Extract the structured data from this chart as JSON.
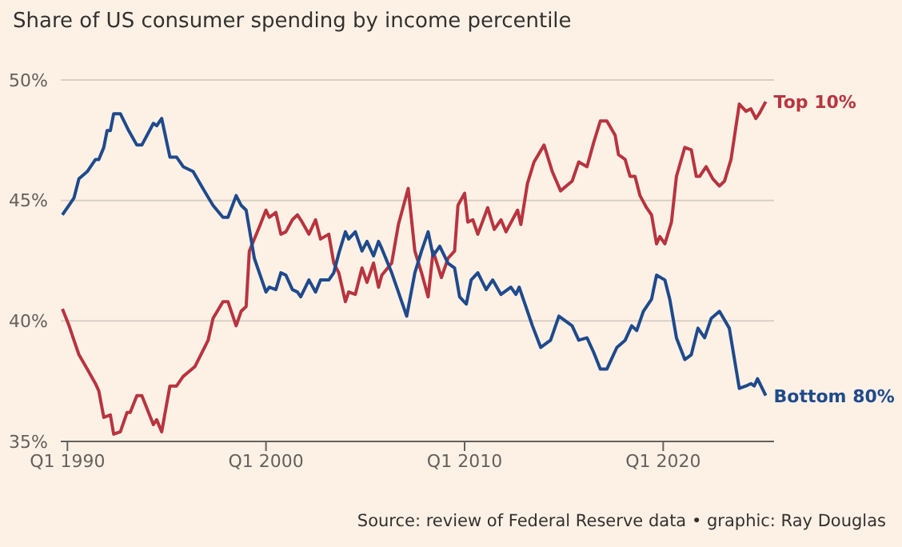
{
  "chart_data": {
    "type": "line",
    "title": "Share of US consumer spending by income percentile",
    "annotations": [
      "Source: review of Federal Reserve data • graphic: Ray Douglas"
    ],
    "xlim": [
      "1989-09",
      "2025-08"
    ],
    "xticks": [
      {
        "value": "1990-01",
        "label": "Q1 1990"
      },
      {
        "value": "2000-01",
        "label": "Q1 2000"
      },
      {
        "value": "2010-01",
        "label": "Q1 2010"
      },
      {
        "value": "2020-01",
        "label": "Q1 2020"
      }
    ],
    "ylim": [
      35,
      50
    ],
    "yticks": [
      {
        "value": 35,
        "label": "35%"
      },
      {
        "value": 40,
        "label": "40%"
      },
      {
        "value": 45,
        "label": "45%"
      },
      {
        "value": 50,
        "label": "50%"
      }
    ],
    "grid": "y",
    "marker": "none",
    "line_style": "solid",
    "series": [
      {
        "name": "Top 10%",
        "color": "#b8343f",
        "x": [
          "1989-10",
          "1990-02",
          "1990-05",
          "1990-08",
          "1991-01",
          "1991-06",
          "1991-08",
          "1991-11",
          "1992-03",
          "1992-05",
          "1992-09",
          "1993-01",
          "1993-03",
          "1993-07",
          "1993-10",
          "1994-05",
          "1994-07",
          "1994-10",
          "1995-03",
          "1995-07",
          "1995-11",
          "1996-06",
          "1997-02",
          "1997-05",
          "1997-11",
          "1998-02",
          "1998-07",
          "1998-10",
          "1999-01",
          "1999-03",
          "1999-09",
          "2000-01",
          "2000-03",
          "2000-07",
          "2000-10",
          "2001-01",
          "2001-05",
          "2001-08",
          "2001-10",
          "2002-03",
          "2002-07",
          "2002-10",
          "2003-03",
          "2003-06",
          "2003-09",
          "2004-01",
          "2004-03",
          "2004-07",
          "2004-11",
          "2005-02",
          "2005-06",
          "2005-09",
          "2005-11",
          "2006-05",
          "2006-09",
          "2007-03",
          "2007-07",
          "2007-11",
          "2008-03",
          "2008-06",
          "2008-11",
          "2009-03",
          "2009-07",
          "2009-09",
          "2010-01",
          "2010-03",
          "2010-06",
          "2010-09",
          "2011-03",
          "2011-07",
          "2011-11",
          "2012-02",
          "2012-09",
          "2012-11",
          "2013-03",
          "2013-07",
          "2014-01",
          "2014-06",
          "2014-11",
          "2015-06",
          "2015-10",
          "2016-03",
          "2016-07",
          "2016-11",
          "2017-03",
          "2017-08",
          "2017-10",
          "2018-02",
          "2018-05",
          "2018-08",
          "2018-11",
          "2019-03",
          "2019-06",
          "2019-09",
          "2019-11",
          "2020-02",
          "2020-06",
          "2020-09",
          "2021-02",
          "2021-06",
          "2021-09",
          "2021-11",
          "2022-03",
          "2022-07",
          "2022-11",
          "2023-02",
          "2023-06",
          "2023-11",
          "2024-03",
          "2024-06",
          "2024-09",
          "2024-11",
          "2025-03"
        ],
        "values": [
          40.5,
          39.8,
          39.2,
          38.6,
          38.0,
          37.4,
          37.1,
          36.0,
          36.1,
          35.3,
          35.4,
          36.2,
          36.2,
          36.9,
          36.9,
          35.7,
          35.9,
          35.4,
          37.3,
          37.3,
          37.7,
          38.1,
          39.2,
          40.1,
          40.8,
          40.8,
          39.8,
          40.4,
          40.6,
          42.9,
          43.9,
          44.6,
          44.3,
          44.5,
          43.6,
          43.7,
          44.2,
          44.4,
          44.2,
          43.6,
          44.2,
          43.4,
          43.6,
          42.4,
          42.0,
          40.8,
          41.2,
          41.1,
          42.2,
          41.6,
          42.4,
          41.4,
          41.9,
          42.4,
          44.0,
          45.5,
          42.9,
          42.0,
          41.0,
          42.9,
          41.8,
          42.6,
          42.9,
          44.8,
          45.3,
          44.1,
          44.2,
          43.6,
          44.7,
          43.8,
          44.2,
          43.7,
          44.6,
          44.0,
          45.7,
          46.6,
          47.3,
          46.2,
          45.4,
          45.8,
          46.6,
          46.4,
          47.4,
          48.3,
          48.3,
          47.7,
          46.9,
          46.7,
          46.0,
          46.0,
          45.2,
          44.7,
          44.4,
          43.2,
          43.5,
          43.2,
          44.1,
          46.0,
          47.2,
          47.1,
          46.0,
          46.0,
          46.4,
          45.9,
          45.6,
          45.8,
          46.7,
          49.0,
          48.7,
          48.8,
          48.4,
          48.6,
          49.1
        ]
      },
      {
        "name": "Bottom 80%",
        "color": "#1f4a8c",
        "x": [
          "1989-10",
          "1990-05",
          "1990-08",
          "1991-01",
          "1991-06",
          "1991-08",
          "1991-11",
          "1992-01",
          "1992-03",
          "1992-05",
          "1992-09",
          "1993-02",
          "1993-07",
          "1993-10",
          "1994-05",
          "1994-07",
          "1994-10",
          "1995-03",
          "1995-07",
          "1995-11",
          "1996-05",
          "1996-10",
          "1997-05",
          "1997-11",
          "1998-02",
          "1998-07",
          "1998-10",
          "1999-01",
          "1999-06",
          "1999-09",
          "2000-01",
          "2000-03",
          "2000-07",
          "2000-10",
          "2001-01",
          "2001-05",
          "2001-08",
          "2001-10",
          "2002-03",
          "2002-07",
          "2002-10",
          "2003-03",
          "2003-06",
          "2003-09",
          "2004-01",
          "2004-03",
          "2004-07",
          "2004-11",
          "2005-02",
          "2005-06",
          "2005-09",
          "2005-11",
          "2006-05",
          "2006-09",
          "2007-02",
          "2007-07",
          "2007-11",
          "2008-03",
          "2008-06",
          "2008-10",
          "2009-03",
          "2009-07",
          "2009-10",
          "2010-02",
          "2010-05",
          "2010-09",
          "2011-02",
          "2011-06",
          "2011-11",
          "2012-05",
          "2012-08",
          "2012-10",
          "2013-06",
          "2013-11",
          "2014-05",
          "2014-10",
          "2015-06",
          "2015-10",
          "2016-03",
          "2016-07",
          "2016-11",
          "2017-03",
          "2017-09",
          "2018-02",
          "2018-06",
          "2018-09",
          "2019-01",
          "2019-06",
          "2019-09",
          "2020-02",
          "2020-05",
          "2020-09",
          "2021-02",
          "2021-06",
          "2021-10",
          "2022-02",
          "2022-06",
          "2022-11",
          "2023-05",
          "2023-11",
          "2024-03",
          "2024-06",
          "2024-08",
          "2024-10",
          "2025-03"
        ],
        "values": [
          44.4,
          45.1,
          45.9,
          46.2,
          46.7,
          46.7,
          47.2,
          47.9,
          47.9,
          48.6,
          48.6,
          47.9,
          47.3,
          47.3,
          48.2,
          48.1,
          48.4,
          46.8,
          46.8,
          46.4,
          46.2,
          45.6,
          44.8,
          44.3,
          44.3,
          45.2,
          44.8,
          44.6,
          42.6,
          42.0,
          41.2,
          41.4,
          41.3,
          42.0,
          41.9,
          41.3,
          41.2,
          41.0,
          41.7,
          41.2,
          41.7,
          41.7,
          42.0,
          42.8,
          43.7,
          43.4,
          43.7,
          42.9,
          43.3,
          42.7,
          43.3,
          43.0,
          42.0,
          41.2,
          40.2,
          42.0,
          42.9,
          43.7,
          42.7,
          43.1,
          42.4,
          42.2,
          41.0,
          40.7,
          41.7,
          42.0,
          41.3,
          41.7,
          41.1,
          41.4,
          41.1,
          41.4,
          39.8,
          38.9,
          39.2,
          40.2,
          39.8,
          39.2,
          39.3,
          38.7,
          38.0,
          38.0,
          38.9,
          39.2,
          39.8,
          39.6,
          40.4,
          40.9,
          41.9,
          41.7,
          40.9,
          39.3,
          38.4,
          38.6,
          39.7,
          39.3,
          40.1,
          40.4,
          39.7,
          37.2,
          37.3,
          37.4,
          37.3,
          37.6,
          36.9
        ]
      }
    ]
  }
}
